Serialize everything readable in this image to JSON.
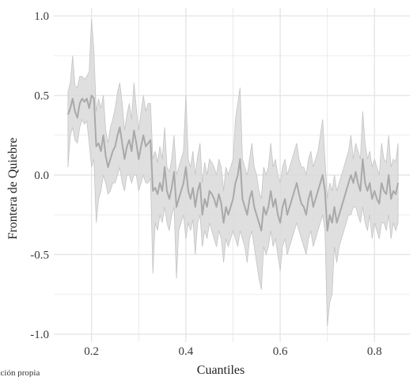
{
  "chart_data": {
    "type": "line",
    "xlabel": "Cuantiles",
    "ylabel": "Frontera de Quiebre",
    "caption": "ración propia",
    "xlim": [
      0.12,
      0.875
    ],
    "ylim": [
      -1.05,
      1.05
    ],
    "xticks": [
      0.2,
      0.4,
      0.6,
      0.8
    ],
    "xtick_labels": [
      "0.2",
      "0.4",
      "0.6",
      "0.8"
    ],
    "yticks": [
      -1.0,
      -0.5,
      0.0,
      0.5,
      1.0
    ],
    "ytick_labels": [
      "-1.0",
      "-0.5",
      "0.0",
      "0.5",
      "1.0"
    ],
    "grid": true,
    "colors": {
      "line": "#a9a9a9",
      "band": "#d9d9d9",
      "grid": "#e6e6e6"
    },
    "x": [
      0.15,
      0.155,
      0.16,
      0.165,
      0.17,
      0.175,
      0.18,
      0.185,
      0.19,
      0.195,
      0.2,
      0.205,
      0.21,
      0.215,
      0.22,
      0.225,
      0.23,
      0.235,
      0.24,
      0.245,
      0.25,
      0.255,
      0.26,
      0.265,
      0.27,
      0.275,
      0.28,
      0.285,
      0.29,
      0.295,
      0.3,
      0.305,
      0.31,
      0.315,
      0.32,
      0.325,
      0.33,
      0.335,
      0.34,
      0.345,
      0.35,
      0.355,
      0.36,
      0.365,
      0.37,
      0.375,
      0.38,
      0.385,
      0.39,
      0.395,
      0.4,
      0.405,
      0.41,
      0.415,
      0.42,
      0.425,
      0.43,
      0.435,
      0.44,
      0.445,
      0.45,
      0.455,
      0.46,
      0.465,
      0.47,
      0.475,
      0.48,
      0.485,
      0.49,
      0.495,
      0.5,
      0.505,
      0.51,
      0.515,
      0.52,
      0.525,
      0.53,
      0.535,
      0.54,
      0.545,
      0.55,
      0.555,
      0.56,
      0.565,
      0.57,
      0.575,
      0.58,
      0.585,
      0.59,
      0.595,
      0.6,
      0.605,
      0.61,
      0.615,
      0.62,
      0.625,
      0.63,
      0.635,
      0.64,
      0.645,
      0.65,
      0.655,
      0.66,
      0.665,
      0.67,
      0.675,
      0.68,
      0.685,
      0.69,
      0.695,
      0.7,
      0.705,
      0.71,
      0.715,
      0.72,
      0.725,
      0.73,
      0.735,
      0.74,
      0.745,
      0.75,
      0.755,
      0.76,
      0.765,
      0.77,
      0.775,
      0.78,
      0.785,
      0.79,
      0.795,
      0.8,
      0.805,
      0.81,
      0.815,
      0.82,
      0.825,
      0.83,
      0.835,
      0.84,
      0.845,
      0.85
    ],
    "series": [
      {
        "values": [
          0.38,
          0.42,
          0.48,
          0.4,
          0.36,
          0.45,
          0.48,
          0.46,
          0.48,
          0.42,
          0.5,
          0.48,
          0.18,
          0.2,
          0.15,
          0.25,
          0.12,
          0.05,
          0.1,
          0.15,
          0.18,
          0.25,
          0.3,
          0.2,
          0.1,
          0.18,
          0.22,
          0.15,
          0.28,
          0.2,
          0.1,
          0.18,
          0.25,
          0.18,
          0.2,
          0.22,
          -0.1,
          -0.08,
          -0.12,
          -0.05,
          -0.1,
          0.05,
          -0.1,
          -0.15,
          -0.08,
          0.02,
          -0.2,
          -0.15,
          -0.1,
          -0.05,
          0.05,
          -0.1,
          -0.15,
          -0.08,
          -0.2,
          -0.1,
          -0.05,
          -0.25,
          -0.15,
          -0.2,
          -0.1,
          -0.12,
          -0.15,
          -0.2,
          -0.12,
          -0.18,
          -0.3,
          -0.2,
          -0.25,
          -0.2,
          -0.15,
          -0.05,
          0.0,
          0.1,
          -0.15,
          -0.2,
          -0.25,
          -0.15,
          -0.1,
          -0.2,
          -0.25,
          -0.3,
          -0.35,
          -0.2,
          -0.25,
          -0.2,
          -0.1,
          -0.2,
          -0.15,
          -0.25,
          -0.3,
          -0.2,
          -0.15,
          -0.25,
          -0.2,
          -0.15,
          -0.1,
          -0.05,
          -0.12,
          -0.18,
          -0.2,
          -0.25,
          -0.15,
          -0.1,
          -0.2,
          -0.15,
          -0.1,
          -0.05,
          0.0,
          -0.1,
          -0.35,
          -0.25,
          -0.3,
          -0.2,
          -0.3,
          -0.25,
          -0.2,
          -0.15,
          -0.1,
          -0.05,
          0.0,
          -0.05,
          0.02,
          -0.05,
          -0.1,
          0.1,
          -0.05,
          -0.1,
          -0.05,
          -0.15,
          -0.1,
          -0.15,
          -0.18,
          -0.05,
          -0.1,
          -0.12,
          0.0,
          -0.15,
          -0.1,
          -0.12,
          -0.05
        ]
      }
    ],
    "band_upper": [
      0.52,
      0.58,
      0.75,
      0.56,
      0.55,
      0.62,
      0.62,
      0.6,
      0.62,
      0.65,
      0.98,
      0.78,
      0.4,
      0.48,
      0.42,
      0.5,
      0.28,
      0.2,
      0.3,
      0.35,
      0.42,
      0.52,
      0.58,
      0.45,
      0.28,
      0.38,
      0.45,
      0.35,
      0.58,
      0.42,
      0.28,
      0.4,
      0.5,
      0.4,
      0.45,
      0.45,
      0.1,
      0.15,
      0.08,
      0.18,
      0.1,
      0.3,
      0.05,
      0.02,
      0.1,
      0.25,
      0.0,
      0.05,
      0.1,
      0.15,
      0.5,
      0.1,
      0.05,
      0.15,
      0.0,
      0.12,
      0.2,
      -0.05,
      0.08,
      0.0,
      0.1,
      0.08,
      0.05,
      0.0,
      0.1,
      0.05,
      -0.1,
      0.05,
      0.0,
      0.05,
      0.1,
      0.35,
      0.45,
      0.55,
      0.1,
      0.05,
      0.0,
      0.1,
      0.2,
      0.05,
      0.0,
      -0.1,
      -0.15,
      0.05,
      0.0,
      0.05,
      0.2,
      0.05,
      0.1,
      0.0,
      -0.05,
      0.05,
      0.1,
      0.0,
      0.05,
      0.1,
      0.15,
      0.2,
      0.1,
      0.05,
      0.05,
      0.0,
      0.1,
      0.15,
      0.05,
      0.1,
      0.15,
      0.25,
      0.35,
      0.1,
      -0.15,
      -0.05,
      -0.1,
      0.0,
      -0.1,
      -0.05,
      0.0,
      0.05,
      0.1,
      0.15,
      0.25,
      0.1,
      0.2,
      0.15,
      0.1,
      0.4,
      0.2,
      0.1,
      0.15,
      0.05,
      0.1,
      0.05,
      0.0,
      0.2,
      0.1,
      0.08,
      0.25,
      0.05,
      0.1,
      0.08,
      0.2
    ],
    "band_lower": [
      0.05,
      0.25,
      0.3,
      0.22,
      0.2,
      0.3,
      0.35,
      0.32,
      0.34,
      0.2,
      0.05,
      0.1,
      -0.3,
      -0.15,
      -0.1,
      0.0,
      -0.05,
      -0.12,
      -0.1,
      -0.05,
      -0.05,
      0.0,
      0.05,
      -0.05,
      -0.1,
      0.0,
      0.0,
      -0.05,
      0.0,
      0.0,
      -0.1,
      -0.05,
      0.0,
      -0.05,
      -0.05,
      -0.02,
      -0.62,
      -0.3,
      -0.35,
      -0.25,
      -0.3,
      -0.2,
      -0.3,
      -0.35,
      -0.25,
      -0.2,
      -0.65,
      -0.35,
      -0.3,
      -0.25,
      -0.4,
      -0.3,
      -0.35,
      -0.28,
      -0.5,
      -0.3,
      -0.25,
      -0.45,
      -0.35,
      -0.4,
      -0.3,
      -0.35,
      -0.4,
      -0.45,
      -0.35,
      -0.4,
      -0.55,
      -0.4,
      -0.45,
      -0.4,
      -0.35,
      -0.4,
      -0.45,
      -0.35,
      -0.4,
      -0.45,
      -0.55,
      -0.4,
      -0.35,
      -0.45,
      -0.55,
      -0.65,
      -0.72,
      -0.45,
      -0.5,
      -0.45,
      -0.35,
      -0.45,
      -0.4,
      -0.5,
      -0.6,
      -0.45,
      -0.4,
      -0.5,
      -0.45,
      -0.4,
      -0.35,
      -0.3,
      -0.35,
      -0.4,
      -0.45,
      -0.5,
      -0.4,
      -0.35,
      -0.45,
      -0.4,
      -0.35,
      -0.3,
      -0.25,
      -0.35,
      -0.95,
      -0.8,
      -0.75,
      -0.45,
      -0.55,
      -0.45,
      -0.4,
      -0.35,
      -0.3,
      -0.25,
      -0.25,
      -0.2,
      -0.2,
      -0.25,
      -0.3,
      -0.2,
      -0.3,
      -0.35,
      -0.25,
      -0.4,
      -0.3,
      -0.35,
      -0.4,
      -0.3,
      -0.3,
      -0.35,
      -0.25,
      -0.4,
      -0.3,
      -0.35,
      -0.3
    ]
  }
}
